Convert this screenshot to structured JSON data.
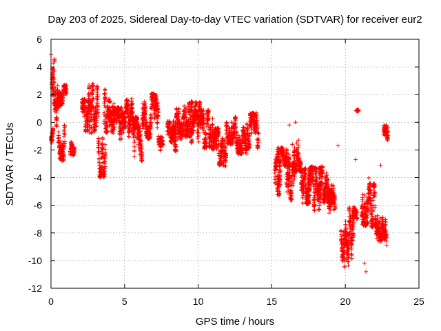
{
  "chart_data": {
    "type": "scatter",
    "title": "Day 203 of 2025, Sidereal Day-to-day VTEC variation (SDTVAR) for receiver eur2",
    "xlabel": "GPS time / hours",
    "ylabel": "SDTVAR / TECUs",
    "xlim": [
      0,
      25
    ],
    "ylim": [
      -12,
      6
    ],
    "xticks": [
      0,
      5,
      10,
      15,
      20,
      25
    ],
    "yticks": [
      -12,
      -10,
      -8,
      -6,
      -4,
      -2,
      0,
      2,
      4,
      6
    ],
    "grid": true,
    "marker": "+",
    "color": "#ff0000",
    "segments": [
      {
        "x_start": 0.0,
        "x_end": 0.15,
        "y_center": -1.0,
        "spread": 0.6
      },
      {
        "x_start": 0.05,
        "x_end": 0.25,
        "y_center": 3.0,
        "spread": 1.8
      },
      {
        "x_start": 0.2,
        "x_end": 0.55,
        "y_center": 1.2,
        "spread": 1.5
      },
      {
        "x_start": 0.45,
        "x_end": 0.7,
        "y_center": 2.6,
        "spread": 1.4
      },
      {
        "x_start": 0.5,
        "x_end": 0.95,
        "y_center": -1.5,
        "spread": 1.3
      },
      {
        "x_start": 0.7,
        "x_end": 1.05,
        "y_center": 2.0,
        "spread": 0.7
      },
      {
        "x_start": 1.3,
        "x_end": 1.6,
        "y_center": -1.8,
        "spread": 0.6
      },
      {
        "x_start": 2.1,
        "x_end": 2.6,
        "y_center": 0.5,
        "spread": 1.2
      },
      {
        "x_start": 2.5,
        "x_end": 3.2,
        "y_center": 1.0,
        "spread": 1.8
      },
      {
        "x_start": 3.2,
        "x_end": 3.7,
        "y_center": -2.5,
        "spread": 1.5
      },
      {
        "x_start": 3.6,
        "x_end": 4.3,
        "y_center": 0.8,
        "spread": 1.6
      },
      {
        "x_start": 4.3,
        "x_end": 5.0,
        "y_center": -0.5,
        "spread": 1.6
      },
      {
        "x_start": 5.0,
        "x_end": 5.6,
        "y_center": 0.3,
        "spread": 1.4
      },
      {
        "x_start": 5.5,
        "x_end": 6.2,
        "y_center": -1.2,
        "spread": 1.6
      },
      {
        "x_start": 6.2,
        "x_end": 6.8,
        "y_center": 0.2,
        "spread": 1.4
      },
      {
        "x_start": 6.8,
        "x_end": 7.3,
        "y_center": 0.5,
        "spread": 1.6
      },
      {
        "x_start": 7.3,
        "x_end": 7.6,
        "y_center": -1.5,
        "spread": 0.6
      },
      {
        "x_start": 7.9,
        "x_end": 8.5,
        "y_center": -1.0,
        "spread": 1.1
      },
      {
        "x_start": 8.3,
        "x_end": 9.0,
        "y_center": -0.2,
        "spread": 1.2
      },
      {
        "x_start": 9.0,
        "x_end": 9.6,
        "y_center": 0.2,
        "spread": 1.3
      },
      {
        "x_start": 9.5,
        "x_end": 10.2,
        "y_center": 0.0,
        "spread": 1.5
      },
      {
        "x_start": 10.2,
        "x_end": 11.0,
        "y_center": -0.5,
        "spread": 1.4
      },
      {
        "x_start": 11.0,
        "x_end": 11.9,
        "y_center": -1.8,
        "spread": 1.4
      },
      {
        "x_start": 11.9,
        "x_end": 12.6,
        "y_center": -0.6,
        "spread": 1.0
      },
      {
        "x_start": 12.6,
        "x_end": 13.3,
        "y_center": -1.3,
        "spread": 1.0
      },
      {
        "x_start": 13.3,
        "x_end": 14.1,
        "y_center": -0.6,
        "spread": 1.3
      },
      {
        "x_start": 15.2,
        "x_end": 15.6,
        "y_center": -3.8,
        "spread": 1.5
      },
      {
        "x_start": 15.4,
        "x_end": 16.2,
        "y_center": -2.5,
        "spread": 0.7
      },
      {
        "x_start": 16.0,
        "x_end": 16.6,
        "y_center": -4.3,
        "spread": 1.4
      },
      {
        "x_start": 16.5,
        "x_end": 17.0,
        "y_center": -2.3,
        "spread": 1.3
      },
      {
        "x_start": 17.0,
        "x_end": 17.6,
        "y_center": -4.6,
        "spread": 1.3
      },
      {
        "x_start": 17.4,
        "x_end": 18.3,
        "y_center": -4.8,
        "spread": 1.6
      },
      {
        "x_start": 18.2,
        "x_end": 18.9,
        "y_center": -4.5,
        "spread": 1.3
      },
      {
        "x_start": 18.8,
        "x_end": 19.3,
        "y_center": -5.8,
        "spread": 1.3
      },
      {
        "x_start": 19.7,
        "x_end": 20.2,
        "y_center": -8.8,
        "spread": 1.7
      },
      {
        "x_start": 20.2,
        "x_end": 20.6,
        "y_center": -8.0,
        "spread": 1.9
      },
      {
        "x_start": 20.5,
        "x_end": 20.8,
        "y_center": -6.5,
        "spread": 0.5
      },
      {
        "x_start": 20.75,
        "x_end": 20.9,
        "y_center": 0.9,
        "spread": 0.1
      },
      {
        "x_start": 21.1,
        "x_end": 21.6,
        "y_center": -5.5,
        "spread": 2.0
      },
      {
        "x_start": 21.6,
        "x_end": 22.1,
        "y_center": -6.0,
        "spread": 1.6
      },
      {
        "x_start": 22.1,
        "x_end": 22.8,
        "y_center": -7.6,
        "spread": 1.0
      },
      {
        "x_start": 22.6,
        "x_end": 22.9,
        "y_center": -1.0,
        "spread": 0.8
      }
    ],
    "outliers": [
      {
        "x": 19.5,
        "y": -1.7
      },
      {
        "x": 20.7,
        "y": -2.7
      },
      {
        "x": 21.4,
        "y": -10.8
      },
      {
        "x": 21.3,
        "y": -10.2
      },
      {
        "x": 22.4,
        "y": -3.1
      },
      {
        "x": 16.2,
        "y": -0.2
      },
      {
        "x": 16.6,
        "y": 0.0
      },
      {
        "x": 16.4,
        "y": -1.6
      },
      {
        "x": 0.0,
        "y": 4.9
      },
      {
        "x": 22.8,
        "y": -8.9
      }
    ]
  }
}
